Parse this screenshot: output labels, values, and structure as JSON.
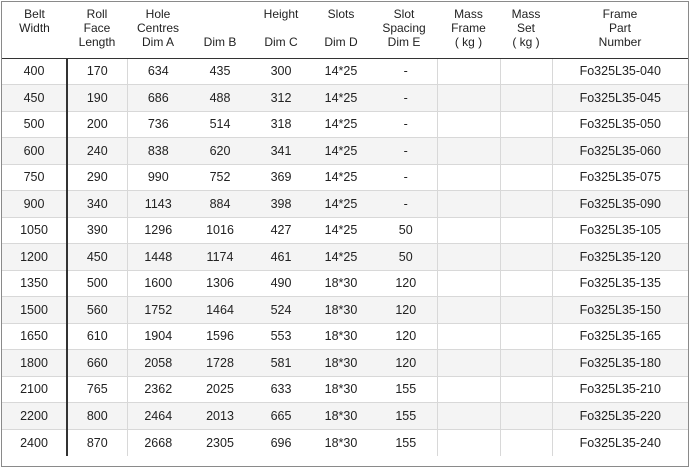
{
  "table": {
    "headers": [
      "Belt\nWidth",
      "Roll\nFace\nLength",
      "Hole\nCentres\nDim A",
      "\n\nDim B",
      "Height\n\nDim C",
      "Slots\n\nDim D",
      "Slot\nSpacing\nDim E",
      "Mass\nFrame\n( kg )",
      "Mass\nSet\n( kg )",
      "Frame\nPart\nNumber"
    ],
    "rows": [
      [
        "400",
        "170",
        "634",
        "435",
        "300",
        "14*25",
        "-",
        "",
        "",
        "Fo325L35-040"
      ],
      [
        "450",
        "190",
        "686",
        "488",
        "312",
        "14*25",
        "-",
        "",
        "",
        "Fo325L35-045"
      ],
      [
        "500",
        "200",
        "736",
        "514",
        "318",
        "14*25",
        "-",
        "",
        "",
        "Fo325L35-050"
      ],
      [
        "600",
        "240",
        "838",
        "620",
        "341",
        "14*25",
        "-",
        "",
        "",
        "Fo325L35-060"
      ],
      [
        "750",
        "290",
        "990",
        "752",
        "369",
        "14*25",
        "-",
        "",
        "",
        "Fo325L35-075"
      ],
      [
        "900",
        "340",
        "1143",
        "884",
        "398",
        "14*25",
        "-",
        "",
        "",
        "Fo325L35-090"
      ],
      [
        "1050",
        "390",
        "1296",
        "1016",
        "427",
        "14*25",
        "50",
        "",
        "",
        "Fo325L35-105"
      ],
      [
        "1200",
        "450",
        "1448",
        "1174",
        "461",
        "14*25",
        "50",
        "",
        "",
        "Fo325L35-120"
      ],
      [
        "1350",
        "500",
        "1600",
        "1306",
        "490",
        "18*30",
        "120",
        "",
        "",
        "Fo325L35-135"
      ],
      [
        "1500",
        "560",
        "1752",
        "1464",
        "524",
        "18*30",
        "120",
        "",
        "",
        "Fo325L35-150"
      ],
      [
        "1650",
        "610",
        "1904",
        "1596",
        "553",
        "18*30",
        "120",
        "",
        "",
        "Fo325L35-165"
      ],
      [
        "1800",
        "660",
        "2058",
        "1728",
        "581",
        "18*30",
        "120",
        "",
        "",
        "Fo325L35-180"
      ],
      [
        "2100",
        "765",
        "2362",
        "2025",
        "633",
        "18*30",
        "155",
        "",
        "",
        "Fo325L35-210"
      ],
      [
        "2200",
        "800",
        "2464",
        "2013",
        "665",
        "18*30",
        "155",
        "",
        "",
        "Fo325L35-220"
      ],
      [
        "2400",
        "870",
        "2668",
        "2305",
        "696",
        "18*30",
        "155",
        "",
        "",
        "Fo325L35-240"
      ]
    ]
  }
}
